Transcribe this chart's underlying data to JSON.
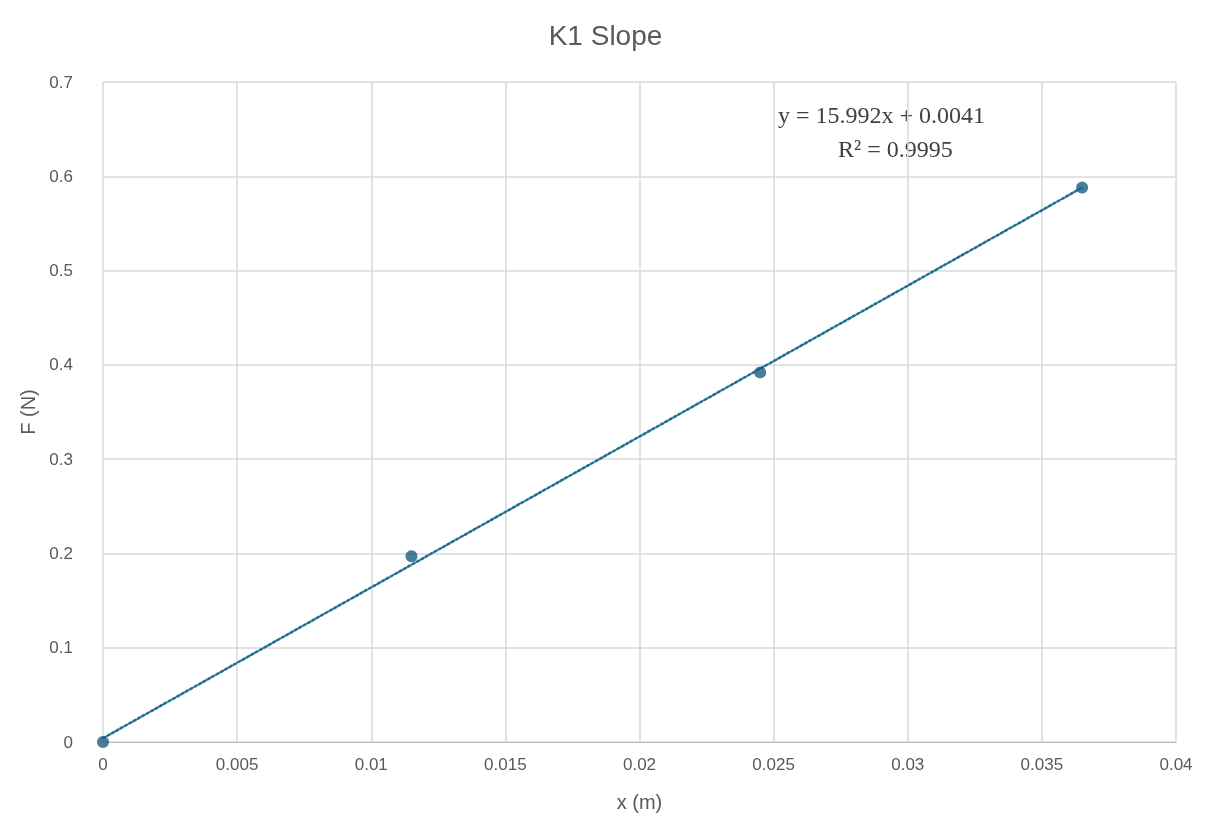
{
  "chart_data": {
    "type": "scatter",
    "title": "K1 Slope",
    "xlabel": "x (m)",
    "ylabel": "F (N)",
    "series": [
      {
        "color": "#1b5e80",
        "x": [
          0,
          0.0115,
          0.0245,
          0.0365
        ],
        "values": [
          0,
          0.197,
          0.392,
          0.588
        ]
      },
      {
        "type": "line",
        "color": "#1f6f8f",
        "line_style": "dotted",
        "marker": "none",
        "x": [
          0,
          0.0365
        ],
        "values": [
          0.004,
          0.588
        ]
      }
    ],
    "marker": "circle",
    "xlim": [
      0,
      0.04
    ],
    "xticks": [
      0,
      0.005,
      0.01,
      0.015,
      0.02,
      0.025,
      0.03,
      0.035,
      0.04
    ],
    "ylim": [
      0,
      0.7
    ],
    "yticks": [
      0,
      0.1,
      0.2,
      0.3,
      0.4,
      0.5,
      0.6,
      0.7
    ],
    "grid": true,
    "annotations": [
      "y = 15.992x + 0.0041",
      "R² = 0.9995"
    ]
  }
}
